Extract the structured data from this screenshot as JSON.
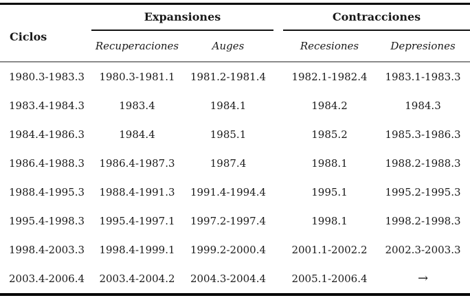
{
  "table": {
    "title_column_header": "Ciclos",
    "groups": [
      {
        "label": "Expansiones",
        "subcolumns": [
          "Recuperaciones",
          "Auges"
        ]
      },
      {
        "label": "Contracciones",
        "subcolumns": [
          "Recesiones",
          "Depresiones"
        ]
      }
    ],
    "rows": [
      {
        "ciclo": "1980.3-1983.3",
        "recuperaciones": "1980.3-1981.1",
        "auges": "1981.2-1981.4",
        "recesiones": "1982.1-1982.4",
        "depresiones": "1983.1-1983.3"
      },
      {
        "ciclo": "1983.4-1984.3",
        "recuperaciones": "1983.4",
        "auges": "1984.1",
        "recesiones": "1984.2",
        "depresiones": "1984.3"
      },
      {
        "ciclo": "1984.4-1986.3",
        "recuperaciones": "1984.4",
        "auges": "1985.1",
        "recesiones": "1985.2",
        "depresiones": "1985.3-1986.3"
      },
      {
        "ciclo": "1986.4-1988.3",
        "recuperaciones": "1986.4-1987.3",
        "auges": "1987.4",
        "recesiones": "1988.1",
        "depresiones": "1988.2-1988.3"
      },
      {
        "ciclo": "1988.4-1995.3",
        "recuperaciones": "1988.4-1991.3",
        "auges": "1991.4-1994.4",
        "recesiones": "1995.1",
        "depresiones": "1995.2-1995.3"
      },
      {
        "ciclo": "1995.4-1998.3",
        "recuperaciones": "1995.4-1997.1",
        "auges": "1997.2-1997.4",
        "recesiones": "1998.1",
        "depresiones": "1998.2-1998.3"
      },
      {
        "ciclo": "1998.4-2003.3",
        "recuperaciones": "1998.4-1999.1",
        "auges": "1999.2-2000.4",
        "recesiones": "2001.1-2002.2",
        "depresiones": "2002.3-2003.3"
      },
      {
        "ciclo": "2003.4-2006.4",
        "recuperaciones": "2003.4-2004.2",
        "auges": "2004.3-2004.4",
        "recesiones": "2005.1-2006.4",
        "depresiones": "→"
      }
    ],
    "colors": {
      "heavy_rule": "#000000",
      "group_rule": "#111111",
      "mid_rule_gray": "#8a8a8a",
      "text": "#1a1a1a"
    }
  }
}
